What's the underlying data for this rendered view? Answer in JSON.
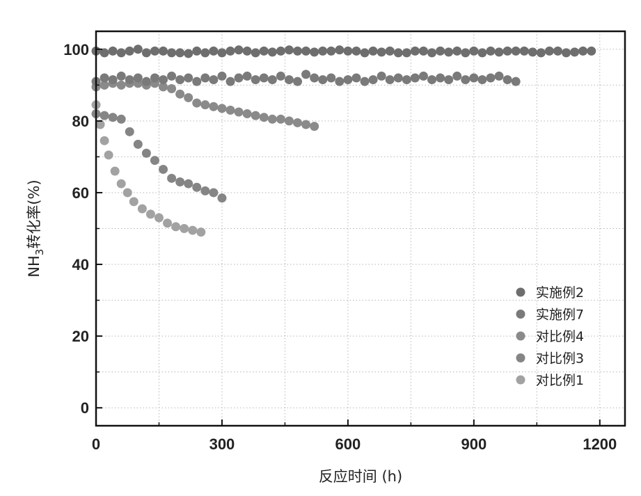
{
  "chart_data": {
    "type": "scatter",
    "title": "",
    "xlabel": "反应时间 (h)",
    "ylabel_main": "NH",
    "ylabel_sub": "3",
    "ylabel_rest": "转化率(%)",
    "xlim": [
      0,
      1260
    ],
    "ylim": [
      -5,
      105
    ],
    "xticks": [
      0,
      300,
      600,
      900,
      1200
    ],
    "yticks": [
      0,
      20,
      40,
      60,
      80,
      100
    ],
    "xticks_minor": [
      150,
      450,
      750,
      1050
    ],
    "yticks_minor": [
      10,
      30,
      50,
      70,
      90
    ],
    "grid": true,
    "legend_position": "bottom-right",
    "series": [
      {
        "name": "实施例2",
        "color": "#6e6e6e",
        "x": [
          0,
          20,
          40,
          60,
          80,
          100,
          120,
          140,
          160,
          180,
          200,
          220,
          240,
          260,
          280,
          300,
          320,
          340,
          360,
          380,
          400,
          420,
          440,
          460,
          480,
          500,
          520,
          540,
          560,
          580,
          600,
          620,
          640,
          660,
          680,
          700,
          720,
          740,
          760,
          780,
          800,
          820,
          840,
          860,
          880,
          900,
          920,
          940,
          960,
          980,
          1000,
          1020,
          1040,
          1060,
          1080,
          1100,
          1120,
          1140,
          1160,
          1180
        ],
        "y": [
          99.5,
          99,
          99.5,
          99,
          99.5,
          100,
          99,
          99.5,
          99.5,
          99,
          99,
          98.8,
          99.5,
          99,
          99.5,
          99,
          99.5,
          99.8,
          99.5,
          99,
          99.5,
          99.2,
          99.5,
          99.8,
          99.5,
          99.5,
          99.2,
          99.5,
          99.5,
          99.8,
          99.5,
          99.5,
          99,
          99.5,
          99.2,
          99.5,
          99,
          99,
          99.5,
          99.5,
          99,
          99.5,
          99.2,
          99.5,
          99,
          99.5,
          99,
          99.5,
          99.2,
          99.5,
          99.5,
          99.5,
          99.2,
          99,
          99.5,
          99.5,
          99,
          99.2,
          99.5,
          99.5
        ]
      },
      {
        "name": "实施例7",
        "color": "#7a7a7a",
        "x": [
          0,
          20,
          40,
          60,
          80,
          100,
          120,
          140,
          160,
          180,
          200,
          220,
          240,
          260,
          280,
          300,
          320,
          340,
          360,
          380,
          400,
          420,
          440,
          460,
          480,
          500,
          520,
          540,
          560,
          580,
          600,
          620,
          640,
          660,
          680,
          700,
          720,
          740,
          760,
          780,
          800,
          820,
          840,
          860,
          880,
          900,
          920,
          940,
          960,
          980,
          1000
        ],
        "y": [
          91,
          92,
          91.5,
          92.5,
          91.5,
          92,
          91,
          92,
          91.5,
          92.5,
          91.5,
          92,
          91,
          92,
          91.5,
          92.5,
          91,
          92,
          92.5,
          91.5,
          92,
          91.5,
          92.5,
          91.5,
          91,
          93,
          92,
          91.5,
          92,
          91,
          91.5,
          92,
          91,
          91.5,
          92.5,
          91.5,
          92,
          91.5,
          92,
          92.5,
          91.5,
          92,
          91.5,
          92.5,
          91.5,
          92,
          91.5,
          92,
          92.5,
          91.5,
          91
        ]
      },
      {
        "name": "对比例4",
        "color": "#8a8a8a",
        "x": [
          0,
          20,
          40,
          60,
          80,
          100,
          120,
          140,
          160,
          180,
          200,
          220,
          240,
          260,
          280,
          300,
          320,
          340,
          360,
          380,
          400,
          420,
          440,
          460,
          480,
          500,
          520
        ],
        "y": [
          89.5,
          90,
          90.5,
          90,
          90.5,
          90.5,
          90,
          90.5,
          89.5,
          89,
          87.5,
          86.5,
          85,
          84.5,
          84,
          83.5,
          83,
          82.5,
          82,
          81.5,
          81,
          80.5,
          80.5,
          80,
          79.5,
          79,
          78.5
        ]
      },
      {
        "name": "对比例3",
        "color": "#858585",
        "x": [
          0,
          20,
          40,
          60,
          80,
          100,
          120,
          140,
          160,
          180,
          200,
          220,
          240,
          260,
          280,
          300
        ],
        "y": [
          82,
          81.5,
          81,
          80.5,
          77,
          73.5,
          71,
          69,
          66.5,
          64,
          63,
          62.5,
          61.5,
          60.5,
          60,
          58.5
        ]
      },
      {
        "name": "对比例1",
        "color": "#a2a2a2",
        "x": [
          0,
          10,
          20,
          30,
          45,
          60,
          75,
          90,
          110,
          130,
          150,
          170,
          190,
          210,
          230,
          250
        ],
        "y": [
          84.5,
          79,
          74.5,
          70.5,
          66,
          62.5,
          60,
          57.5,
          55.5,
          54,
          53,
          51.5,
          50.5,
          50,
          49.5,
          49
        ]
      }
    ]
  }
}
